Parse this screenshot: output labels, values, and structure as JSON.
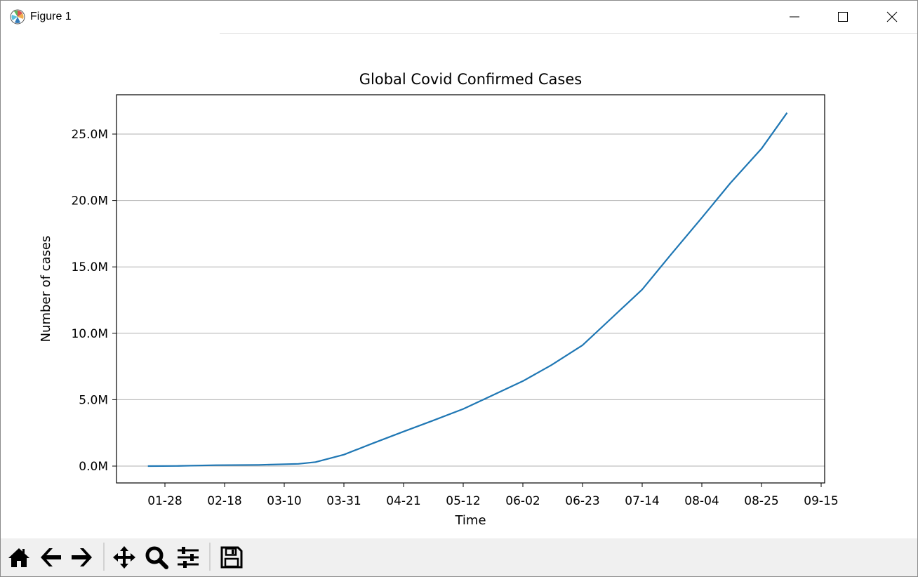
{
  "window": {
    "title": "Figure 1"
  },
  "toolbar": {
    "buttons": [
      {
        "name": "home-button",
        "icon": "home-icon"
      },
      {
        "name": "back-button",
        "icon": "arrow-left-icon"
      },
      {
        "name": "forward-button",
        "icon": "arrow-right-icon"
      },
      {
        "name": "pan-button",
        "icon": "move-icon"
      },
      {
        "name": "zoom-button",
        "icon": "magnifier-icon"
      },
      {
        "name": "configure-subplots-button",
        "icon": "sliders-icon"
      },
      {
        "name": "save-button",
        "icon": "floppy-disk-icon"
      }
    ]
  },
  "chart_data": {
    "type": "line",
    "title": "Global Covid Confirmed Cases",
    "xlabel": "Time",
    "ylabel": "Number of cases",
    "x_ticks": [
      "01-28",
      "02-18",
      "03-10",
      "03-31",
      "04-21",
      "05-12",
      "06-02",
      "06-23",
      "07-14",
      "08-04",
      "08-25",
      "09-15"
    ],
    "y_ticks": [
      "0.0M",
      "5.0M",
      "10.0M",
      "15.0M",
      "20.0M",
      "25.0M"
    ],
    "y_tick_values": [
      0,
      5000000,
      10000000,
      15000000,
      20000000,
      25000000
    ],
    "grid": "horizontal",
    "color": "#1f77b4",
    "series": [
      {
        "x": [
          "2020-01-22",
          "2020-02-01",
          "2020-02-15",
          "2020-03-01",
          "2020-03-15",
          "2020-03-21",
          "2020-03-31",
          "2020-04-10",
          "2020-04-21",
          "2020-05-01",
          "2020-05-12",
          "2020-05-22",
          "2020-06-02",
          "2020-06-12",
          "2020-06-23",
          "2020-07-03",
          "2020-07-14",
          "2020-07-24",
          "2020-08-04",
          "2020-08-14",
          "2020-08-25",
          "2020-09-03"
        ],
        "y": [
          600,
          12000,
          69000,
          88000,
          170000,
          300000,
          860000,
          1700000,
          2600000,
          3400000,
          4300000,
          5300000,
          6400000,
          7600000,
          9100000,
          11100000,
          13300000,
          15900000,
          18700000,
          21300000,
          23900000,
          26600000
        ]
      }
    ]
  }
}
